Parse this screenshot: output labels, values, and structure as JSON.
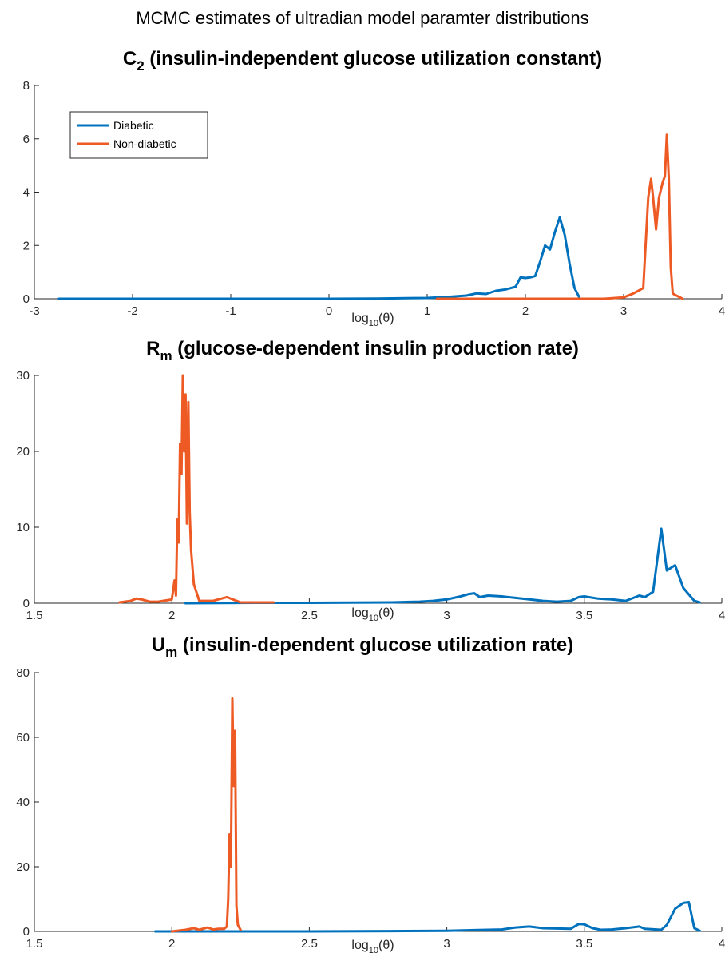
{
  "figure": {
    "suptitle": "MCMC estimates of ultradian model paramter distributions",
    "colors": {
      "diabetic": "#0072BD",
      "nondiabetic": "#EE5A24"
    }
  },
  "chart_data": [
    {
      "type": "line",
      "title_main": "C",
      "title_sub": "2",
      "title_rest": " (insulin-independent glucose utilization constant)",
      "xlabel_main": "log",
      "xlabel_sub": "10",
      "xlabel_rest": "(θ)",
      "xlim": [
        -3,
        4
      ],
      "ylim": [
        0,
        8
      ],
      "xticks": [
        -3,
        -2,
        -1,
        0,
        1,
        2,
        3,
        4
      ],
      "yticks": [
        0,
        2,
        4,
        6,
        8
      ],
      "legend": {
        "position": "top-left",
        "entries": [
          "Diabetic",
          "Non-diabetic"
        ]
      },
      "series": [
        {
          "name": "Diabetic",
          "color": "#0072BD",
          "x": [
            -2.75,
            -2.0,
            -1.0,
            0.0,
            0.5,
            1.0,
            1.2,
            1.4,
            1.5,
            1.6,
            1.7,
            1.8,
            1.9,
            1.95,
            2.0,
            2.05,
            2.1,
            2.15,
            2.2,
            2.25,
            2.3,
            2.35,
            2.4,
            2.45,
            2.5,
            2.55
          ],
          "y": [
            0,
            0,
            0,
            0,
            0.01,
            0.03,
            0.07,
            0.12,
            0.2,
            0.18,
            0.3,
            0.35,
            0.45,
            0.8,
            0.78,
            0.8,
            0.85,
            1.4,
            2.0,
            1.85,
            2.5,
            3.05,
            2.4,
            1.3,
            0.4,
            0.05
          ]
        },
        {
          "name": "Non-diabetic",
          "color": "#EE5A24",
          "x": [
            1.1,
            1.5,
            2.0,
            2.5,
            2.8,
            3.0,
            3.1,
            3.15,
            3.2,
            3.25,
            3.28,
            3.3,
            3.33,
            3.36,
            3.4,
            3.42,
            3.44,
            3.46,
            3.48,
            3.5,
            3.52,
            3.55,
            3.6
          ],
          "y": [
            0,
            0,
            0,
            0,
            0,
            0.05,
            0.2,
            0.3,
            0.4,
            3.8,
            4.5,
            3.8,
            2.6,
            3.8,
            4.4,
            4.6,
            6.15,
            4.5,
            1.2,
            0.2,
            0.15,
            0.1,
            0
          ]
        }
      ]
    },
    {
      "type": "line",
      "title_main": "R",
      "title_sub": "m",
      "title_rest": " (glucose-dependent insulin production rate)",
      "xlabel_main": "log",
      "xlabel_sub": "10",
      "xlabel_rest": "(θ)",
      "xlim": [
        1.5,
        4
      ],
      "ylim": [
        0,
        30
      ],
      "xticks": [
        1.5,
        2,
        2.5,
        3,
        3.5,
        4
      ],
      "yticks": [
        0,
        10,
        20,
        30
      ],
      "series": [
        {
          "name": "Diabetic",
          "color": "#0072BD",
          "x": [
            2.05,
            2.3,
            2.5,
            2.8,
            2.9,
            2.95,
            3.0,
            3.05,
            3.08,
            3.1,
            3.12,
            3.15,
            3.2,
            3.25,
            3.3,
            3.35,
            3.4,
            3.45,
            3.48,
            3.5,
            3.55,
            3.6,
            3.65,
            3.7,
            3.72,
            3.75,
            3.78,
            3.8,
            3.83,
            3.86,
            3.9,
            3.92
          ],
          "y": [
            0,
            0.05,
            0.05,
            0.1,
            0.2,
            0.3,
            0.5,
            0.9,
            1.2,
            1.3,
            0.8,
            1.0,
            0.9,
            0.7,
            0.5,
            0.3,
            0.2,
            0.3,
            0.8,
            0.9,
            0.6,
            0.5,
            0.3,
            1.0,
            0.8,
            1.5,
            9.8,
            4.3,
            5.0,
            2.0,
            0.3,
            0.1
          ]
        },
        {
          "name": "Non-diabetic",
          "color": "#EE5A24",
          "x": [
            1.81,
            1.85,
            1.87,
            1.89,
            1.92,
            1.95,
            2.0,
            2.01,
            2.015,
            2.02,
            2.025,
            2.03,
            2.035,
            2.04,
            2.045,
            2.05,
            2.055,
            2.06,
            2.065,
            2.07,
            2.08,
            2.1,
            2.15,
            2.2,
            2.25,
            2.37
          ],
          "y": [
            0.1,
            0.3,
            0.6,
            0.5,
            0.2,
            0.2,
            0.5,
            3.0,
            1.0,
            11.0,
            8.0,
            21.0,
            17.0,
            30.0,
            20.0,
            27.5,
            10.5,
            26.5,
            12.0,
            7.0,
            2.5,
            0.3,
            0.3,
            0.8,
            0.1,
            0.1
          ]
        }
      ]
    },
    {
      "type": "line",
      "title_main": "U",
      "title_sub": "m",
      "title_rest": " (insulin-dependent glucose utilization rate)",
      "xlabel_main": "log",
      "xlabel_sub": "10",
      "xlabel_rest": "(θ)",
      "xlim": [
        1.5,
        4
      ],
      "ylim": [
        0,
        80
      ],
      "xticks": [
        1.5,
        2,
        2.5,
        3,
        3.5,
        4
      ],
      "yticks": [
        0,
        20,
        40,
        60,
        80
      ],
      "series": [
        {
          "name": "Diabetic",
          "color": "#0072BD",
          "x": [
            1.94,
            2.2,
            2.5,
            2.8,
            3.0,
            3.1,
            3.2,
            3.25,
            3.3,
            3.35,
            3.4,
            3.45,
            3.48,
            3.5,
            3.53,
            3.56,
            3.6,
            3.65,
            3.7,
            3.72,
            3.78,
            3.8,
            3.83,
            3.86,
            3.88,
            3.9,
            3.92
          ],
          "y": [
            0,
            0,
            0,
            0.1,
            0.2,
            0.4,
            0.6,
            1.2,
            1.5,
            1.0,
            0.9,
            0.8,
            2.3,
            2.2,
            1.0,
            0.5,
            0.6,
            1.0,
            1.5,
            0.8,
            0.5,
            2.0,
            7.0,
            8.8,
            9.0,
            1.0,
            0.2
          ]
        },
        {
          "name": "Non-diabetic",
          "color": "#EE5A24",
          "x": [
            2.0,
            2.05,
            2.08,
            2.1,
            2.13,
            2.15,
            2.17,
            2.19,
            2.2,
            2.205,
            2.21,
            2.215,
            2.22,
            2.225,
            2.23,
            2.235,
            2.24,
            2.25
          ],
          "y": [
            0,
            0.5,
            1.0,
            0.5,
            1.2,
            0.6,
            0.8,
            0.8,
            1.5,
            10.0,
            30.0,
            20.0,
            72.0,
            45.0,
            62.0,
            8.0,
            2.0,
            0.5
          ]
        }
      ]
    }
  ]
}
